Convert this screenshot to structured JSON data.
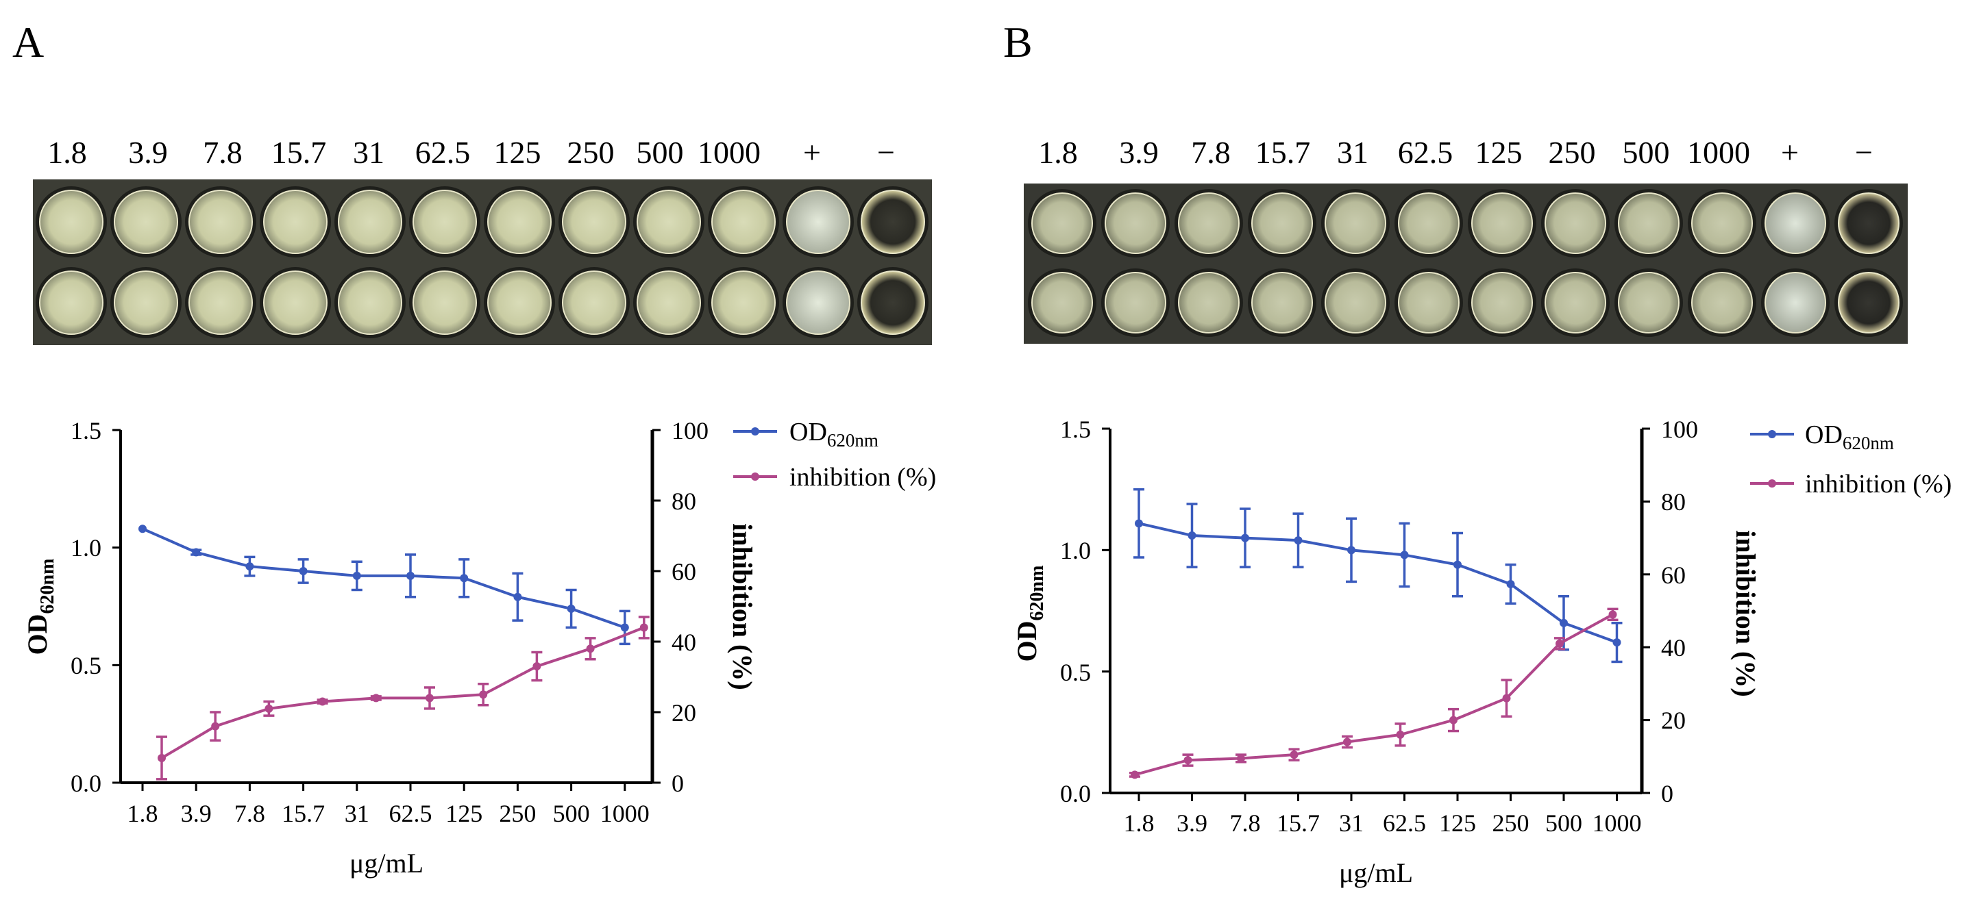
{
  "colors": {
    "od": "#3a5bbd",
    "inhibition": "#b0478a",
    "axis": "#000000"
  },
  "panels": [
    {
      "letter": "A",
      "well_labels": [
        "1.8",
        "3.9",
        "7.8",
        "15.7",
        "31",
        "62.5",
        "125",
        "250",
        "500",
        "1000",
        "+",
        "−"
      ],
      "chart_data": {
        "type": "line",
        "categories": [
          "1.8",
          "3.9",
          "7.8",
          "15.7",
          "31",
          "62.5",
          "125",
          "250",
          "500",
          "1000"
        ],
        "xlabel": "μg/mL",
        "ylabel_left_main": "OD",
        "ylabel_left_sub": "620nm",
        "ylabel_right": "inhibition (%)",
        "ylim_left": [
          0,
          1.5
        ],
        "yticks_left": [
          "0.0",
          "0.5",
          "1.0",
          "1.5"
        ],
        "ylim_right": [
          0,
          100
        ],
        "yticks_right": [
          "0",
          "20",
          "40",
          "60",
          "80",
          "100"
        ],
        "legend": [
          {
            "main": "OD",
            "sub": "620nm"
          },
          {
            "main": "inhibition (%)",
            "sub": ""
          }
        ],
        "series": [
          {
            "name": "OD620nm",
            "axis": "left",
            "values": [
              1.08,
              0.98,
              0.92,
              0.9,
              0.88,
              0.88,
              0.87,
              0.79,
              0.74,
              0.66
            ],
            "errors": [
              0.0,
              0.01,
              0.04,
              0.05,
              0.06,
              0.09,
              0.08,
              0.1,
              0.08,
              0.07
            ]
          },
          {
            "name": "inhibition (%)",
            "axis": "right",
            "values": [
              7,
              16,
              21,
              23,
              24,
              24,
              25,
              33,
              38,
              44
            ],
            "errors": [
              6,
              4,
              2,
              0.5,
              0.5,
              3,
              3,
              4,
              3,
              3
            ]
          }
        ]
      }
    },
    {
      "letter": "B",
      "well_labels": [
        "1.8",
        "3.9",
        "7.8",
        "15.7",
        "31",
        "62.5",
        "125",
        "250",
        "500",
        "1000",
        "+",
        "−"
      ],
      "chart_data": {
        "type": "line",
        "categories": [
          "1.8",
          "3.9",
          "7.8",
          "15.7",
          "31",
          "62.5",
          "125",
          "250",
          "500",
          "1000"
        ],
        "xlabel": "μg/mL",
        "ylabel_left_main": "OD",
        "ylabel_left_sub": "620nm",
        "ylabel_right": "inhibition (%)",
        "ylim_left": [
          0,
          1.5
        ],
        "yticks_left": [
          "0.0",
          "0.5",
          "1.0",
          "1.5"
        ],
        "ylim_right": [
          0,
          100
        ],
        "yticks_right": [
          "0",
          "20",
          "40",
          "60",
          "80",
          "100"
        ],
        "legend": [
          {
            "main": "OD",
            "sub": "620nm"
          },
          {
            "main": "inhibition (%)",
            "sub": ""
          }
        ],
        "series": [
          {
            "name": "OD620nm",
            "axis": "left",
            "values": [
              1.11,
              1.06,
              1.05,
              1.04,
              1.0,
              0.98,
              0.94,
              0.86,
              0.7,
              0.62
            ],
            "errors": [
              0.14,
              0.13,
              0.12,
              0.11,
              0.13,
              0.13,
              0.13,
              0.08,
              0.11,
              0.08
            ]
          },
          {
            "name": "inhibition (%)",
            "axis": "right",
            "values": [
              5,
              9,
              9.5,
              10.5,
              14,
              16,
              20,
              26,
              41,
              49
            ],
            "errors": [
              0.5,
              1.5,
              1,
              1.5,
              1.5,
              3,
              3,
              5,
              1.5,
              1.5
            ]
          }
        ]
      }
    }
  ]
}
